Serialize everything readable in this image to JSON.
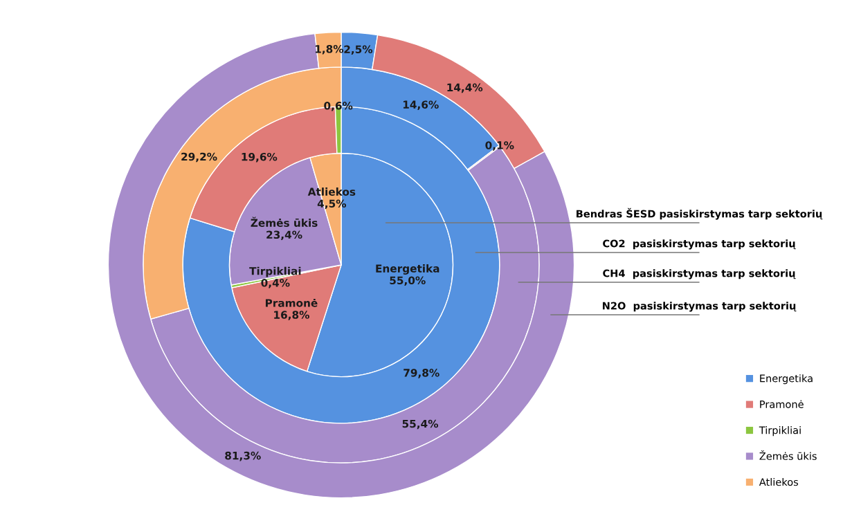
{
  "chart_data": {
    "type": "donut",
    "categories": [
      "Energetika",
      "Pramonė",
      "Tirpikliai",
      "Žemės ūkis",
      "Atliekos"
    ],
    "colors": [
      "#5592e0",
      "#e07b78",
      "#8cc63f",
      "#a78ccb",
      "#f8b070"
    ],
    "legend": "bottom right",
    "series": [
      {
        "name": "Bendras ŠESD pasiskirstymas tarp sektorių",
        "values": [
          55.0,
          16.8,
          0.4,
          23.4,
          4.5
        ],
        "value_labels": [
          "Energetika\n55,0%",
          "Pramonė\n16,8%",
          "Tirpikliai\n0,4%",
          "Žemės ūkis\n23,4%",
          "Atliekos\n4,5%"
        ]
      },
      {
        "name": "CO2  pasiskirstymas tarp sektorių",
        "values": [
          79.8,
          19.6,
          0.6,
          null,
          null
        ],
        "value_labels": [
          "79,8%",
          "19,6%",
          "0,6%",
          null,
          null
        ]
      },
      {
        "name": "CH4  pasiskirstymas tarp sektorių",
        "values": [
          14.6,
          0.1,
          null,
          55.4,
          29.2
        ],
        "value_labels": [
          "14,6%",
          "0,1%",
          null,
          "55,4%",
          "29,2%"
        ]
      },
      {
        "name": "N2O  pasiskirstymas tarp sektorių",
        "values": [
          2.5,
          14.4,
          null,
          81.3,
          1.8
        ],
        "value_labels": [
          "2,5%",
          "14,4%",
          null,
          "81,3%",
          "1,8%"
        ]
      }
    ]
  }
}
